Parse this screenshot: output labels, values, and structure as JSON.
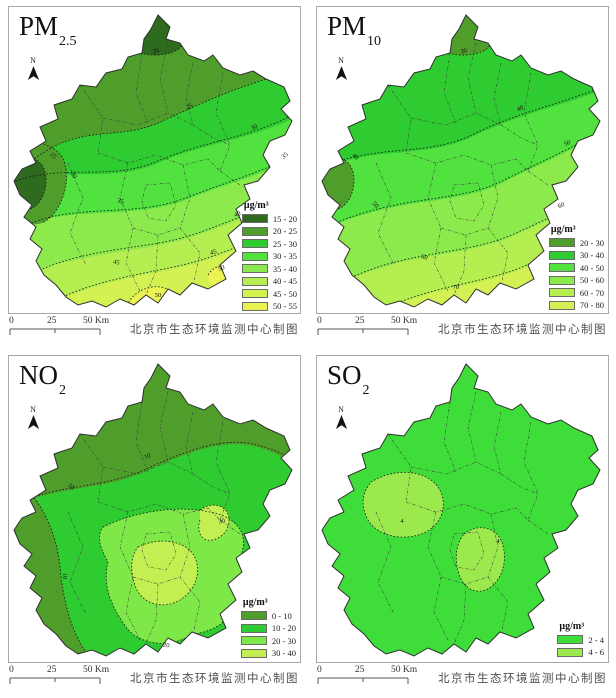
{
  "figure": {
    "attribution": "北京市生态环境监测中心制图",
    "north_label": "N",
    "unit_label": "μg/m³",
    "scalebar_labels": [
      "0",
      "25",
      "50 Km"
    ]
  },
  "panels": [
    {
      "id": "pm25",
      "title_main": "PM",
      "title_sub": "2.5",
      "base_color_index": 2,
      "legend": [
        {
          "label": "15 - 20",
          "color": "#2e6b1e"
        },
        {
          "label": "20 - 25",
          "color": "#4f9e2b"
        },
        {
          "label": "25 - 30",
          "color": "#2ecc30"
        },
        {
          "label": "30 - 35",
          "color": "#52e23f"
        },
        {
          "label": "35 - 40",
          "color": "#8cea4d"
        },
        {
          "label": "40 - 45",
          "color": "#b4ee51"
        },
        {
          "label": "45 - 50",
          "color": "#d3f153"
        },
        {
          "label": "50 - 55",
          "color": "#eaf353"
        }
      ],
      "contour_labels": [
        "20",
        "25",
        "25",
        "30",
        "30",
        "35",
        "35",
        "40",
        "45",
        "45",
        "50",
        "50"
      ]
    },
    {
      "id": "pm10",
      "title_main": "PM",
      "title_sub": "10",
      "base_color_index": 1,
      "legend": [
        {
          "label": "20 - 30",
          "color": "#4f9e2b"
        },
        {
          "label": "30 - 40",
          "color": "#2ecc30"
        },
        {
          "label": "40 - 50",
          "color": "#52e23f"
        },
        {
          "label": "50 - 60",
          "color": "#8cea4d"
        },
        {
          "label": "60 - 70",
          "color": "#b4ee51"
        },
        {
          "label": "70 - 80",
          "color": "#d3f153"
        }
      ],
      "contour_labels": [
        "30",
        "40",
        "40",
        "50",
        "50",
        "60",
        "60",
        "70"
      ]
    },
    {
      "id": "no2",
      "title_main": "NO",
      "title_sub": "2",
      "base_color_index": 1,
      "legend": [
        {
          "label": "0 - 10",
          "color": "#4f9e2b"
        },
        {
          "label": "10 - 20",
          "color": "#2ecc30"
        },
        {
          "label": "20 - 30",
          "color": "#7de847"
        },
        {
          "label": "30 - 40",
          "color": "#c4ef52"
        }
      ],
      "contour_labels": [
        "10",
        "10",
        "10",
        "30",
        "20"
      ]
    },
    {
      "id": "so2",
      "title_main": "SO",
      "title_sub": "2",
      "base_color_index": 0,
      "legend": [
        {
          "label": "2 - 4",
          "color": "#3edd3a"
        },
        {
          "label": "4 - 6",
          "color": "#9ce94d"
        }
      ],
      "contour_labels": [
        "4",
        "4"
      ]
    }
  ]
}
